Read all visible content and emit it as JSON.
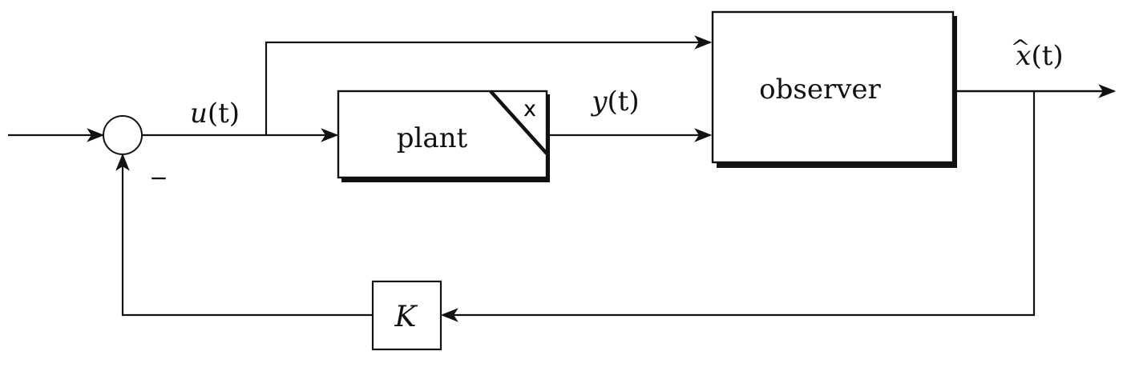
{
  "diagram": {
    "blocks": {
      "plant": {
        "label": "plant",
        "corner_mark": "x"
      },
      "observer": {
        "label": "observer"
      },
      "gain": {
        "label": "K"
      }
    },
    "signals": {
      "control": {
        "var": "u",
        "arg": "(t)"
      },
      "output": {
        "var": "y",
        "arg": "(t)"
      },
      "estimate": {
        "var": "x",
        "hat": "^",
        "arg": "(t)"
      }
    },
    "summing_junction": {
      "feedback_sign": "−"
    }
  }
}
